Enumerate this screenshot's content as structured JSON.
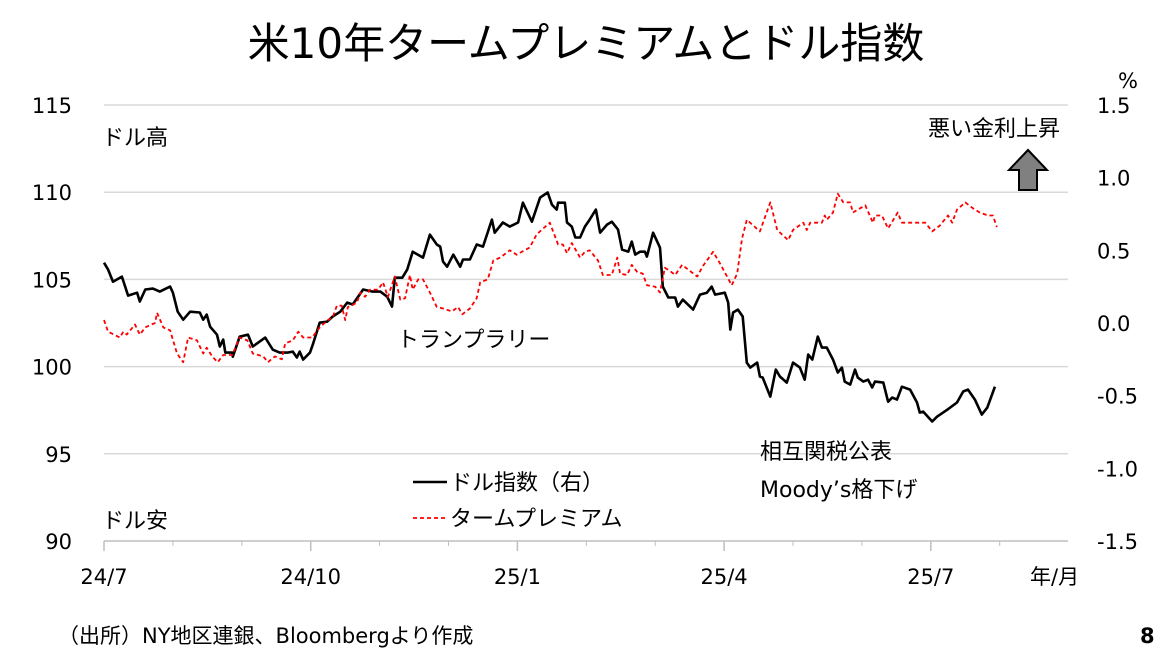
{
  "chart_data": {
    "type": "line",
    "title": "米10年タームプレミアムとドル指数",
    "x_unit_label": "年/月",
    "x_ticks": [
      "24/7",
      "24/10",
      "25/1",
      "25/4",
      "25/7"
    ],
    "x_tick_months": [
      0,
      3,
      6,
      9,
      12
    ],
    "x_range_months": [
      0,
      13.5
    ],
    "y_left": {
      "ticks": [
        "115",
        "110",
        "105",
        "100",
        "95",
        "90"
      ],
      "range": [
        90,
        115
      ]
    },
    "y_right": {
      "label": "%",
      "ticks": [
        "1.5",
        "1.0",
        "0.5",
        "0.0",
        "-0.5",
        "-1.0",
        "-1.5"
      ],
      "range": [
        -1.5,
        1.5
      ]
    },
    "grid": true,
    "legend_placement": "bottom-center",
    "series": [
      {
        "name": "ドル指数（右）",
        "axis": "left",
        "color": "#000000",
        "style": "solid",
        "points": [
          [
            0,
            105.96
          ],
          [
            0.06,
            105.56
          ],
          [
            0.13,
            104.87
          ],
          [
            0.26,
            105.16
          ],
          [
            0.35,
            104.07
          ],
          [
            0.48,
            104.24
          ],
          [
            0.52,
            103.73
          ],
          [
            0.6,
            104.42
          ],
          [
            0.71,
            104.47
          ],
          [
            0.81,
            104.3
          ],
          [
            0.96,
            104.59
          ],
          [
            1.0,
            104.24
          ],
          [
            1.07,
            103.15
          ],
          [
            1.15,
            102.69
          ],
          [
            1.25,
            103.15
          ],
          [
            1.39,
            103.1
          ],
          [
            1.44,
            102.69
          ],
          [
            1.49,
            102.98
          ],
          [
            1.54,
            102.29
          ],
          [
            1.64,
            101.83
          ],
          [
            1.68,
            101.15
          ],
          [
            1.73,
            101.55
          ],
          [
            1.76,
            100.8
          ],
          [
            1.86,
            100.8
          ],
          [
            1.87,
            100.57
          ],
          [
            1.97,
            101.72
          ],
          [
            2.09,
            101.83
          ],
          [
            2.16,
            101.15
          ],
          [
            2.34,
            101.66
          ],
          [
            2.45,
            100.97
          ],
          [
            2.55,
            100.8
          ],
          [
            2.66,
            100.8
          ],
          [
            2.74,
            100.86
          ],
          [
            2.8,
            100.52
          ],
          [
            2.84,
            100.86
          ],
          [
            2.89,
            100.4
          ],
          [
            2.99,
            100.8
          ],
          [
            3.03,
            101.26
          ],
          [
            3.13,
            102.52
          ],
          [
            3.24,
            102.58
          ],
          [
            3.32,
            102.87
          ],
          [
            3.43,
            103.15
          ],
          [
            3.53,
            103.67
          ],
          [
            3.61,
            103.56
          ],
          [
            3.76,
            104.42
          ],
          [
            3.9,
            104.3
          ],
          [
            4.01,
            104.3
          ],
          [
            4.11,
            104.01
          ],
          [
            4.18,
            103.44
          ],
          [
            4.22,
            105.1
          ],
          [
            4.33,
            105.1
          ],
          [
            4.4,
            105.56
          ],
          [
            4.48,
            106.59
          ],
          [
            4.63,
            106.25
          ],
          [
            4.73,
            107.57
          ],
          [
            4.83,
            107.0
          ],
          [
            4.88,
            106.88
          ],
          [
            4.92,
            106.02
          ],
          [
            4.98,
            105.73
          ],
          [
            5.07,
            106.42
          ],
          [
            5.17,
            105.73
          ],
          [
            5.21,
            106.14
          ],
          [
            5.31,
            106.14
          ],
          [
            5.41,
            107.0
          ],
          [
            5.5,
            106.88
          ],
          [
            5.63,
            108.43
          ],
          [
            5.67,
            107.68
          ],
          [
            5.79,
            108.26
          ],
          [
            5.89,
            108.03
          ],
          [
            6.01,
            108.26
          ],
          [
            6.08,
            109.4
          ],
          [
            6.21,
            108.31
          ],
          [
            6.33,
            109.69
          ],
          [
            6.44,
            109.98
          ],
          [
            6.5,
            109.29
          ],
          [
            6.57,
            109.0
          ],
          [
            6.59,
            109.4
          ],
          [
            6.69,
            109.4
          ],
          [
            6.72,
            108.26
          ],
          [
            6.79,
            108.03
          ],
          [
            6.84,
            107.4
          ],
          [
            6.91,
            107.4
          ],
          [
            6.98,
            108.03
          ],
          [
            7.05,
            108.43
          ],
          [
            7.14,
            109.0
          ],
          [
            7.2,
            107.68
          ],
          [
            7.3,
            108.14
          ],
          [
            7.37,
            108.31
          ],
          [
            7.46,
            107.86
          ],
          [
            7.52,
            106.71
          ],
          [
            7.61,
            106.59
          ],
          [
            7.66,
            107.17
          ],
          [
            7.71,
            106.42
          ],
          [
            7.78,
            106.59
          ],
          [
            7.85,
            106.59
          ],
          [
            7.88,
            106.31
          ],
          [
            7.97,
            107.68
          ],
          [
            8.07,
            106.82
          ],
          [
            8.11,
            104.59
          ],
          [
            8.19,
            103.96
          ],
          [
            8.29,
            103.96
          ],
          [
            8.33,
            103.44
          ],
          [
            8.4,
            103.84
          ],
          [
            8.55,
            103.27
          ],
          [
            8.65,
            104.13
          ],
          [
            8.75,
            104.24
          ],
          [
            8.82,
            104.59
          ],
          [
            8.87,
            104.13
          ],
          [
            9.01,
            104.24
          ],
          [
            9.06,
            103.67
          ],
          [
            9.09,
            102.12
          ],
          [
            9.13,
            103.1
          ],
          [
            9.2,
            103.27
          ],
          [
            9.27,
            102.87
          ],
          [
            9.33,
            100.23
          ],
          [
            9.38,
            99.94
          ],
          [
            9.48,
            100.23
          ],
          [
            9.52,
            99.43
          ],
          [
            9.56,
            99.37
          ],
          [
            9.67,
            98.28
          ],
          [
            9.75,
            99.83
          ],
          [
            9.81,
            99.43
          ],
          [
            9.91,
            99.08
          ],
          [
            10.0,
            100.23
          ],
          [
            10.1,
            99.94
          ],
          [
            10.17,
            99.25
          ],
          [
            10.22,
            100.69
          ],
          [
            10.28,
            100.4
          ],
          [
            10.36,
            101.72
          ],
          [
            10.42,
            101.09
          ],
          [
            10.49,
            101.09
          ],
          [
            10.58,
            100.4
          ],
          [
            10.65,
            99.66
          ],
          [
            10.71,
            99.94
          ],
          [
            10.75,
            99.14
          ],
          [
            10.83,
            98.97
          ],
          [
            10.9,
            99.83
          ],
          [
            10.94,
            99.37
          ],
          [
            11.02,
            99.14
          ],
          [
            11.09,
            99.25
          ],
          [
            11.15,
            98.8
          ],
          [
            11.19,
            99.14
          ],
          [
            11.31,
            99.08
          ],
          [
            11.38,
            97.99
          ],
          [
            11.44,
            98.22
          ],
          [
            11.51,
            98.11
          ],
          [
            11.58,
            98.85
          ],
          [
            11.7,
            98.68
          ],
          [
            11.8,
            97.94
          ],
          [
            11.84,
            97.36
          ],
          [
            11.89,
            97.42
          ],
          [
            12.02,
            96.85
          ],
          [
            12.09,
            97.13
          ],
          [
            12.24,
            97.53
          ],
          [
            12.38,
            97.94
          ],
          [
            12.47,
            98.57
          ],
          [
            12.54,
            98.68
          ],
          [
            12.64,
            98.11
          ],
          [
            12.74,
            97.25
          ],
          [
            12.82,
            97.65
          ],
          [
            12.93,
            98.85
          ]
        ]
      },
      {
        "name": "タームプレミアム",
        "axis": "right",
        "color": "#ff0000",
        "style": "dashed",
        "points": [
          [
            0,
            0.02
          ],
          [
            0.06,
            -0.06
          ],
          [
            0.23,
            -0.1
          ],
          [
            0.28,
            -0.06
          ],
          [
            0.33,
            -0.08
          ],
          [
            0.45,
            -0.01
          ],
          [
            0.52,
            -0.08
          ],
          [
            0.6,
            -0.03
          ],
          [
            0.74,
            0.0
          ],
          [
            0.77,
            0.07
          ],
          [
            0.86,
            -0.03
          ],
          [
            0.96,
            -0.05
          ],
          [
            1.06,
            -0.21
          ],
          [
            1.15,
            -0.27
          ],
          [
            1.22,
            -0.1
          ],
          [
            1.35,
            -0.12
          ],
          [
            1.44,
            -0.21
          ],
          [
            1.49,
            -0.17
          ],
          [
            1.57,
            -0.23
          ],
          [
            1.65,
            -0.27
          ],
          [
            1.73,
            -0.22
          ],
          [
            1.86,
            -0.22
          ],
          [
            1.97,
            -0.1
          ],
          [
            2.08,
            -0.12
          ],
          [
            2.16,
            -0.21
          ],
          [
            2.31,
            -0.23
          ],
          [
            2.38,
            -0.27
          ],
          [
            2.48,
            -0.23
          ],
          [
            2.58,
            -0.25
          ],
          [
            2.63,
            -0.14
          ],
          [
            2.74,
            -0.12
          ],
          [
            2.82,
            -0.06
          ],
          [
            2.89,
            -0.1
          ],
          [
            3.02,
            -0.1
          ],
          [
            3.13,
            -0.03
          ],
          [
            3.25,
            0.02
          ],
          [
            3.32,
            0.04
          ],
          [
            3.38,
            0.12
          ],
          [
            3.45,
            0.12
          ],
          [
            3.5,
            0.02
          ],
          [
            3.54,
            0.11
          ],
          [
            3.67,
            0.14
          ],
          [
            3.72,
            0.21
          ],
          [
            3.79,
            0.18
          ],
          [
            3.86,
            0.23
          ],
          [
            3.98,
            0.23
          ],
          [
            4.05,
            0.28
          ],
          [
            4.12,
            0.18
          ],
          [
            4.22,
            0.32
          ],
          [
            4.3,
            0.16
          ],
          [
            4.37,
            0.17
          ],
          [
            4.44,
            0.33
          ],
          [
            4.48,
            0.23
          ],
          [
            4.56,
            0.3
          ],
          [
            4.63,
            0.3
          ],
          [
            4.73,
            0.21
          ],
          [
            4.83,
            0.11
          ],
          [
            4.92,
            0.1
          ],
          [
            5.05,
            0.08
          ],
          [
            5.14,
            0.11
          ],
          [
            5.2,
            0.06
          ],
          [
            5.31,
            0.1
          ],
          [
            5.41,
            0.17
          ],
          [
            5.46,
            0.28
          ],
          [
            5.57,
            0.3
          ],
          [
            5.65,
            0.43
          ],
          [
            5.75,
            0.45
          ],
          [
            5.89,
            0.5
          ],
          [
            5.99,
            0.47
          ],
          [
            6.18,
            0.52
          ],
          [
            6.28,
            0.61
          ],
          [
            6.47,
            0.69
          ],
          [
            6.59,
            0.54
          ],
          [
            6.66,
            0.54
          ],
          [
            6.72,
            0.48
          ],
          [
            6.79,
            0.55
          ],
          [
            6.91,
            0.45
          ],
          [
            6.98,
            0.49
          ],
          [
            7.05,
            0.5
          ],
          [
            7.17,
            0.43
          ],
          [
            7.24,
            0.33
          ],
          [
            7.37,
            0.33
          ],
          [
            7.45,
            0.45
          ],
          [
            7.49,
            0.34
          ],
          [
            7.59,
            0.33
          ],
          [
            7.66,
            0.4
          ],
          [
            7.74,
            0.35
          ],
          [
            7.82,
            0.34
          ],
          [
            7.88,
            0.26
          ],
          [
            8.0,
            0.25
          ],
          [
            8.07,
            0.21
          ],
          [
            8.14,
            0.38
          ],
          [
            8.21,
            0.36
          ],
          [
            8.29,
            0.33
          ],
          [
            8.39,
            0.4
          ],
          [
            8.61,
            0.32
          ],
          [
            8.69,
            0.39
          ],
          [
            8.84,
            0.49
          ],
          [
            8.94,
            0.41
          ],
          [
            9.11,
            0.26
          ],
          [
            9.19,
            0.34
          ],
          [
            9.26,
            0.58
          ],
          [
            9.33,
            0.71
          ],
          [
            9.52,
            0.63
          ],
          [
            9.67,
            0.83
          ],
          [
            9.77,
            0.64
          ],
          [
            9.93,
            0.57
          ],
          [
            10.0,
            0.64
          ],
          [
            10.15,
            0.69
          ],
          [
            10.2,
            0.64
          ],
          [
            10.25,
            0.69
          ],
          [
            10.42,
            0.69
          ],
          [
            10.46,
            0.74
          ],
          [
            10.49,
            0.71
          ],
          [
            10.58,
            0.76
          ],
          [
            10.65,
            0.89
          ],
          [
            10.73,
            0.83
          ],
          [
            10.83,
            0.83
          ],
          [
            10.87,
            0.76
          ],
          [
            10.94,
            0.78
          ],
          [
            11.05,
            0.81
          ],
          [
            11.16,
            0.69
          ],
          [
            11.19,
            0.74
          ],
          [
            11.29,
            0.74
          ],
          [
            11.38,
            0.65
          ],
          [
            11.52,
            0.76
          ],
          [
            11.58,
            0.69
          ],
          [
            11.74,
            0.69
          ],
          [
            11.84,
            0.69
          ],
          [
            11.92,
            0.69
          ],
          [
            12.02,
            0.63
          ],
          [
            12.13,
            0.67
          ],
          [
            12.25,
            0.74
          ],
          [
            12.31,
            0.69
          ],
          [
            12.38,
            0.78
          ],
          [
            12.5,
            0.83
          ],
          [
            12.61,
            0.79
          ],
          [
            12.71,
            0.76
          ],
          [
            12.83,
            0.74
          ],
          [
            12.9,
            0.74
          ],
          [
            12.96,
            0.66
          ]
        ]
      }
    ],
    "annotations": {
      "dollar_high": "ドル高",
      "dollar_low": "ドル安",
      "trump_rally": "トランプラリー",
      "tariff_line1": "相互関税公表",
      "tariff_line2": "Moody’s格下げ",
      "bad_rate_rise": "悪い金利上昇"
    }
  },
  "footer": {
    "source": "（出所）NY地区連銀、Bloombergより作成",
    "page_number": "8"
  },
  "colors": {
    "grid": "#d9d9d9",
    "arrow_fill": "#808080"
  }
}
